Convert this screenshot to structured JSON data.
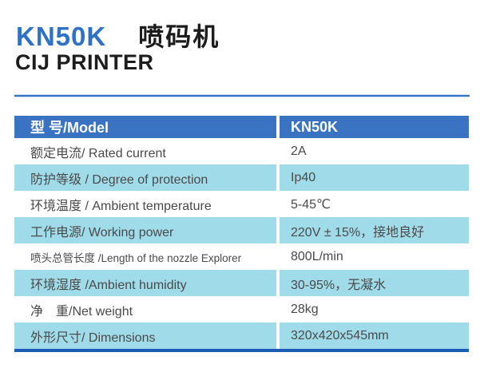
{
  "header": {
    "title_model": "KN50K",
    "title_cn": "喷码机",
    "subtitle": "CIJ PRINTER"
  },
  "colors": {
    "title_blue": "#2e72c7",
    "table_header_blue": "#3b73c3",
    "row_light_blue": "#a0dbe9",
    "bottom_line_blue": "#1a5cb5",
    "row_text": "#4a4a4a"
  },
  "table": {
    "header": {
      "model_label": "型 号/Model",
      "model_value": "KN50K"
    },
    "rows": [
      {
        "label": "额定电流/ Rated current",
        "value": "2A",
        "shaded": false,
        "small": false
      },
      {
        "label": "防护等级 / Degree of protection",
        "value": "Ip40",
        "shaded": true,
        "small": false
      },
      {
        "label": "环境温度 / Ambient temperature",
        "value": "5-45℃",
        "shaded": false,
        "small": false
      },
      {
        "label": "工作电源/ Working power",
        "value": "220V ± 15%，接地良好",
        "shaded": true,
        "small": false
      },
      {
        "label": "喷头总管长度 /Length of the nozzle Explorer",
        "value": "800L/min",
        "shaded": false,
        "small": true
      },
      {
        "label": "环境湿度 /Ambient humidity",
        "value": "30-95%，无凝水",
        "shaded": true,
        "small": false
      },
      {
        "label": "净　重/Net weight",
        "value": "28kg",
        "shaded": false,
        "small": false
      },
      {
        "label": "外形尺寸/ Dimensions",
        "value": "320x420x545mm",
        "shaded": true,
        "small": false
      }
    ]
  }
}
